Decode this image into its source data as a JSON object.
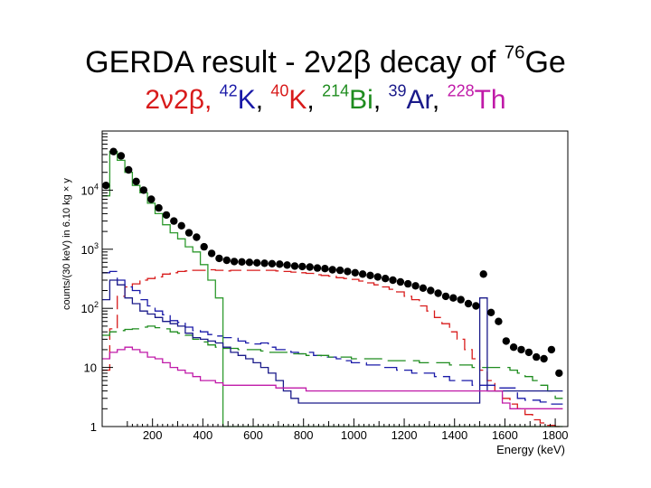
{
  "slide": {
    "title_main": "GERDA result - 2ν2β decay of ",
    "title_sup": "76",
    "title_elem": "Ge",
    "subtitle": {
      "p1": "2ν2β, ",
      "k42_sup": "42",
      "k42": "K",
      "sep1": ", ",
      "k40_sup": "40",
      "k40": "K",
      "sep2": ", ",
      "bi_sup": "214",
      "bi": "Bi",
      "sep3": ", ",
      "ar_sup": "39",
      "ar": "Ar",
      "sep4": ", ",
      "th_sup": "228",
      "th": "Th"
    },
    "colors": {
      "nu2beta": "#d81b1b",
      "k42": "#1a1aa8",
      "k40": "#2f9a2f",
      "bi214": "#1e8c1e",
      "ar39": "#1a1a8a",
      "th228": "#c01aa8",
      "data": "#000000"
    }
  },
  "chart_data": {
    "type": "line",
    "ylabel": "counts/(30 keV) in  6.10 kg × y",
    "xlabel": "Energy (keV)",
    "xlim": [
      0,
      1850
    ],
    "ylim": [
      1,
      100000
    ],
    "log_y": true,
    "x_ticks": [
      200,
      400,
      600,
      800,
      1000,
      1200,
      1400,
      1600,
      1800
    ],
    "x_tick_labels": [
      "200",
      "400",
      "600",
      "800",
      "1000",
      "1200",
      "1400",
      "1600",
      "1800"
    ],
    "y_ticks": [
      1,
      10,
      100,
      1000,
      10000
    ],
    "y_tick_labels": [
      {
        "base": "1",
        "exp": ""
      },
      {
        "base": "10",
        "exp": ""
      },
      {
        "base": "10",
        "exp": "2"
      },
      {
        "base": "10",
        "exp": "3"
      },
      {
        "base": "10",
        "exp": "4"
      }
    ],
    "data_points": {
      "x": [
        15,
        45,
        75,
        105,
        135,
        165,
        195,
        225,
        255,
        285,
        315,
        345,
        375,
        405,
        435,
        465,
        495,
        525,
        555,
        585,
        615,
        645,
        675,
        705,
        735,
        765,
        795,
        825,
        855,
        885,
        915,
        945,
        975,
        1005,
        1035,
        1065,
        1095,
        1125,
        1155,
        1185,
        1215,
        1245,
        1275,
        1305,
        1335,
        1365,
        1395,
        1425,
        1455,
        1485,
        1515,
        1545,
        1575,
        1605,
        1635,
        1665,
        1695,
        1725,
        1755,
        1785,
        1815
      ],
      "y": [
        12000,
        45000,
        38000,
        22000,
        14000,
        10000,
        7000,
        5000,
        3800,
        3000,
        2500,
        1900,
        1600,
        1100,
        850,
        700,
        650,
        620,
        610,
        600,
        590,
        580,
        570,
        560,
        540,
        520,
        510,
        500,
        480,
        470,
        450,
        440,
        420,
        400,
        380,
        360,
        340,
        320,
        300,
        280,
        260,
        240,
        220,
        200,
        180,
        160,
        150,
        140,
        120,
        110,
        380,
        85,
        60,
        28,
        22,
        20,
        18,
        15,
        14,
        20,
        8
      ]
    },
    "series": [
      {
        "step_width": 30,
        "style": "dashed",
        "dash": "15 6",
        "x": [
          15,
          45,
          75,
          105,
          135,
          165,
          195,
          225,
          255,
          285,
          315,
          345,
          375,
          405,
          435,
          465,
          495,
          525,
          555,
          585,
          615,
          645,
          675,
          705,
          735,
          765,
          795,
          825,
          855,
          885,
          915,
          945,
          975,
          1005,
          1035,
          1065,
          1095,
          1125,
          1155,
          1185,
          1215,
          1245,
          1275,
          1305,
          1335,
          1365,
          1395,
          1425,
          1455,
          1485,
          1515,
          1545,
          1575,
          1605,
          1635,
          1665,
          1695,
          1725,
          1755,
          1785,
          1815
        ],
        "y": [
          9,
          45,
          160,
          230,
          260,
          300,
          320,
          340,
          380,
          400,
          420,
          430,
          440,
          440,
          450,
          440,
          430,
          440,
          440,
          440,
          440,
          440,
          440,
          430,
          420,
          410,
          400,
          390,
          370,
          360,
          350,
          330,
          320,
          310,
          290,
          270,
          250,
          230,
          210,
          190,
          160,
          140,
          110,
          90,
          70,
          55,
          40,
          30,
          20,
          14,
          9,
          6,
          4,
          3,
          2.4,
          2,
          1.6,
          1.3,
          1.15,
          1.05,
          1
        ]
      },
      {
        "step_width": 30,
        "style": "dashed",
        "dash": "18 7",
        "x": [
          15,
          45,
          75,
          105,
          135,
          165,
          195,
          225,
          255,
          285,
          315,
          345,
          375,
          405,
          435,
          465,
          495,
          525,
          555,
          585,
          615,
          645,
          675,
          705,
          735,
          765,
          795,
          825,
          855,
          885,
          915,
          945,
          975,
          1005,
          1035,
          1065,
          1095,
          1125,
          1155,
          1185,
          1215,
          1245,
          1275,
          1305,
          1335,
          1365,
          1395,
          1425,
          1455,
          1485,
          1515,
          1545,
          1575,
          1605,
          1635,
          1665,
          1695,
          1725,
          1755,
          1785,
          1815
        ],
        "y": [
          400,
          420,
          300,
          230,
          200,
          140,
          110,
          90,
          78,
          62,
          58,
          48,
          42,
          40,
          36,
          34,
          32,
          32,
          28,
          26,
          25,
          26,
          22,
          20,
          20,
          18,
          17,
          18,
          16,
          15,
          15,
          14,
          13,
          12,
          12,
          11,
          11,
          10,
          10,
          9,
          9,
          8,
          8,
          8,
          7,
          7,
          6,
          6,
          6,
          5,
          5,
          5,
          4.5,
          4.5,
          4.5,
          3,
          2.8,
          2.8,
          2.6,
          2.4,
          2.4
        ]
      },
      {
        "step_width": 30,
        "style": "solid",
        "x": [
          15,
          45,
          75,
          105,
          135,
          165,
          195,
          225,
          255,
          285,
          315,
          345,
          375,
          405,
          435,
          465,
          495,
          525,
          555,
          585,
          615,
          645,
          675,
          705,
          735,
          765,
          795,
          825,
          855,
          885,
          915,
          945,
          975,
          1005,
          1035,
          1065,
          1095,
          1125,
          1155,
          1185,
          1215,
          1245,
          1275,
          1305,
          1335,
          1365,
          1395,
          1425,
          1455,
          1485,
          1515,
          1545,
          1575,
          1605,
          1635,
          1665,
          1695,
          1725,
          1755,
          1785,
          1815
        ],
        "y": [
          8000,
          45000,
          32000,
          20000,
          12000,
          9000,
          6000,
          4000,
          2600,
          1900,
          1500,
          1100,
          900,
          550,
          300,
          150,
          1,
          1,
          1,
          1,
          1,
          1,
          1,
          1,
          1,
          1,
          1,
          1,
          1,
          1,
          1,
          1,
          1,
          1,
          1,
          1,
          1,
          1,
          1,
          1,
          1,
          1,
          1,
          1,
          1,
          1,
          1,
          1,
          1,
          1,
          1,
          1,
          1,
          1,
          1,
          1,
          1,
          1,
          1,
          1,
          1
        ]
      },
      {
        "step_width": 30,
        "style": "dashed",
        "dash": "20 8",
        "x": [
          15,
          45,
          75,
          105,
          135,
          165,
          195,
          225,
          255,
          285,
          315,
          345,
          375,
          405,
          435,
          465,
          495,
          525,
          555,
          585,
          615,
          645,
          675,
          705,
          735,
          765,
          795,
          825,
          855,
          885,
          915,
          945,
          975,
          1005,
          1035,
          1065,
          1095,
          1125,
          1155,
          1185,
          1215,
          1245,
          1275,
          1305,
          1335,
          1365,
          1395,
          1425,
          1455,
          1485,
          1515,
          1545,
          1575,
          1605,
          1635,
          1665,
          1695,
          1725,
          1755,
          1785,
          1815
        ],
        "y": [
          35,
          40,
          42,
          44,
          45,
          48,
          50,
          47,
          45,
          40,
          38,
          35,
          30,
          27,
          24,
          22,
          21,
          21,
          20,
          20,
          20,
          19,
          18,
          18,
          18,
          17,
          17,
          16,
          16,
          16,
          15,
          15,
          15,
          14,
          14,
          14,
          14,
          13,
          13,
          13,
          13,
          13,
          12,
          12,
          12,
          12,
          11,
          11,
          11,
          10,
          10,
          10,
          10,
          10,
          9,
          8,
          7,
          6,
          5,
          4,
          3
        ]
      },
      {
        "step_width": 30,
        "style": "solid",
        "x": [
          15,
          45,
          75,
          105,
          135,
          165,
          195,
          225,
          255,
          285,
          315,
          345,
          375,
          405,
          435,
          465,
          495,
          525,
          555,
          585,
          615,
          645,
          675,
          705,
          735,
          765,
          795,
          825,
          855,
          885,
          915,
          945,
          975,
          1005,
          1035,
          1065,
          1095,
          1125,
          1155,
          1185,
          1215,
          1245,
          1275,
          1305,
          1335,
          1365,
          1395,
          1425,
          1455,
          1485,
          1515,
          1545,
          1575,
          1605,
          1635,
          1665,
          1695,
          1725,
          1755,
          1785,
          1815
        ],
        "y": [
          140,
          300,
          250,
          150,
          120,
          90,
          80,
          70,
          60,
          55,
          50,
          38,
          32,
          30,
          28,
          26,
          22,
          18,
          16,
          14,
          12,
          10,
          8,
          6,
          4,
          3,
          2.5,
          2.5,
          2.5,
          2.5,
          2.5,
          2.5,
          2.5,
          2.5,
          2.5,
          2.5,
          2.5,
          2.5,
          2.5,
          2.5,
          2.5,
          2.5,
          2.5,
          2.5,
          2.5,
          2.5,
          2.5,
          2.5,
          2.5,
          2.5,
          150,
          4,
          4,
          4,
          4,
          4,
          4,
          4,
          4,
          4,
          4
        ]
      },
      {
        "step_width": 30,
        "style": "solid",
        "x": [
          15,
          45,
          75,
          105,
          135,
          165,
          195,
          225,
          255,
          285,
          315,
          345,
          375,
          405,
          435,
          465,
          495,
          525,
          555,
          585,
          615,
          645,
          675,
          705,
          735,
          765,
          795,
          825,
          855,
          885,
          915,
          945,
          975,
          1005,
          1035,
          1065,
          1095,
          1125,
          1155,
          1185,
          1215,
          1245,
          1275,
          1305,
          1335,
          1365,
          1395,
          1425,
          1455,
          1485,
          1515,
          1545,
          1575,
          1605,
          1635,
          1665,
          1695,
          1725,
          1755,
          1785,
          1815
        ],
        "y": [
          14,
          18,
          20,
          22,
          20,
          18,
          15,
          14,
          12,
          10,
          9,
          8,
          7,
          6,
          6,
          5.5,
          5,
          5,
          5,
          5,
          5,
          5,
          5,
          4.5,
          4.5,
          4.5,
          4.5,
          4,
          4,
          4,
          4,
          4,
          4,
          4,
          4,
          4,
          4,
          4,
          4,
          4,
          4,
          4,
          4,
          4,
          4,
          4,
          4,
          4,
          4,
          4,
          4,
          4,
          4,
          2.5,
          2,
          2,
          2,
          2,
          2,
          2,
          2
        ]
      }
    ]
  }
}
